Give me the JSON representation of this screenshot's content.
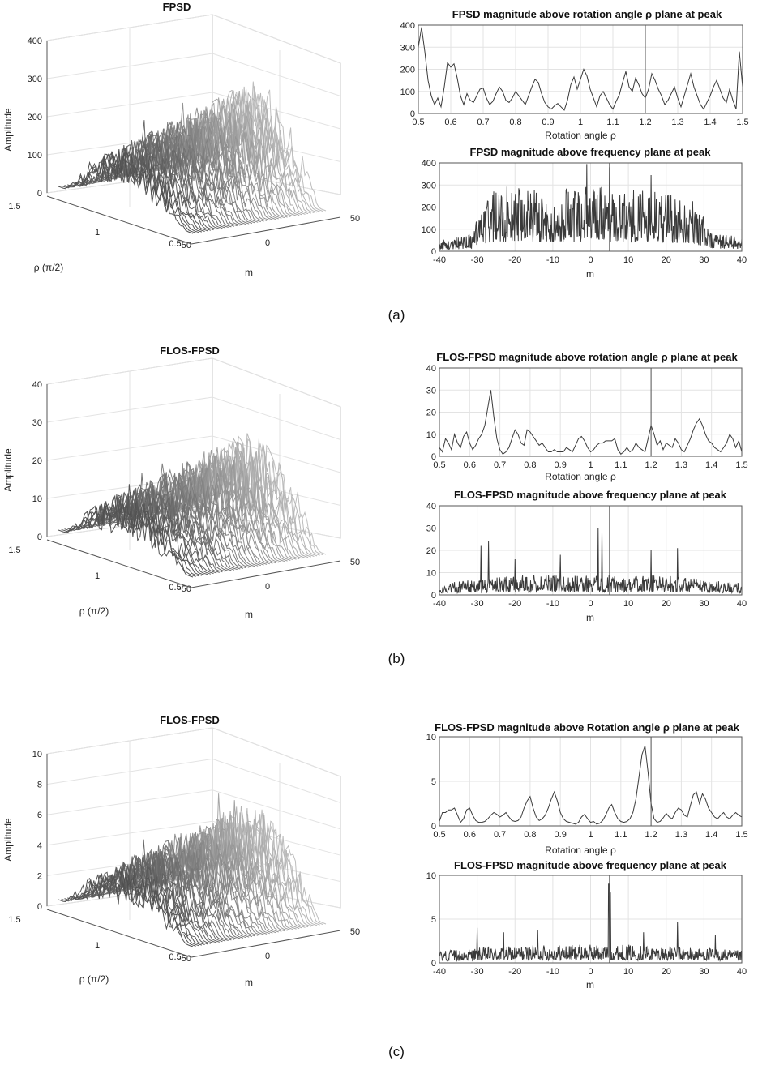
{
  "colors": {
    "trace": "#3a3a3a",
    "grid": "#e3e3e3",
    "axis": "#555555",
    "surface_high": "#d2d2d2",
    "surface_low": "#2e2e2e"
  },
  "chart_data": [
    {
      "id": "a-surface",
      "type": "area",
      "surface3d": true,
      "title": "FPSD",
      "xlabel": "m",
      "ylabel": "ρ (π/2)",
      "zlabel": "Amplitude",
      "x_range": [
        -50,
        50
      ],
      "y_range": [
        0.5,
        1.5
      ],
      "z_range": [
        0,
        400
      ],
      "x_ticks": [
        "-50",
        "0",
        "50"
      ],
      "y_ticks": [
        "0.5",
        "1",
        "1.5"
      ],
      "z_ticks": [
        "0",
        "100",
        "200",
        "300",
        "400"
      ],
      "typical_amplitude": [
        0,
        350
      ],
      "grid": true
    },
    {
      "id": "a-rho",
      "type": "line",
      "title": "FPSD magnitude above rotation angle ρ plane at peak",
      "xlabel": "Rotation angle ρ",
      "ylabel": "",
      "xlim": [
        0.5,
        1.5
      ],
      "ylim": [
        0,
        400
      ],
      "x_ticks": [
        "0.5",
        "0.6",
        "0.7",
        "0.8",
        "0.9",
        "1",
        "1.1",
        "1.2",
        "1.3",
        "1.4",
        "1.5"
      ],
      "y_ticks": [
        "0",
        "100",
        "200",
        "300",
        "400"
      ],
      "marker_x": 1.2,
      "grid": true,
      "x": [
        0.5,
        0.51,
        0.52,
        0.53,
        0.54,
        0.55,
        0.56,
        0.57,
        0.58,
        0.59,
        0.6,
        0.61,
        0.62,
        0.63,
        0.64,
        0.65,
        0.66,
        0.67,
        0.68,
        0.69,
        0.7,
        0.71,
        0.72,
        0.73,
        0.74,
        0.75,
        0.76,
        0.77,
        0.78,
        0.79,
        0.8,
        0.81,
        0.82,
        0.83,
        0.84,
        0.85,
        0.86,
        0.87,
        0.88,
        0.89,
        0.9,
        0.91,
        0.92,
        0.93,
        0.94,
        0.95,
        0.96,
        0.97,
        0.98,
        0.99,
        1.0,
        1.01,
        1.02,
        1.03,
        1.04,
        1.05,
        1.06,
        1.07,
        1.08,
        1.09,
        1.1,
        1.11,
        1.12,
        1.13,
        1.14,
        1.15,
        1.16,
        1.17,
        1.18,
        1.19,
        1.2,
        1.21,
        1.22,
        1.23,
        1.24,
        1.25,
        1.26,
        1.27,
        1.28,
        1.29,
        1.3,
        1.31,
        1.32,
        1.33,
        1.34,
        1.35,
        1.36,
        1.37,
        1.38,
        1.39,
        1.4,
        1.41,
        1.42,
        1.43,
        1.44,
        1.45,
        1.46,
        1.47,
        1.48,
        1.49,
        1.5
      ],
      "y": [
        300,
        390,
        280,
        150,
        80,
        40,
        70,
        30,
        120,
        230,
        210,
        225,
        160,
        80,
        40,
        90,
        60,
        50,
        80,
        110,
        115,
        70,
        40,
        55,
        90,
        120,
        100,
        60,
        50,
        70,
        100,
        80,
        60,
        40,
        80,
        120,
        155,
        140,
        90,
        50,
        30,
        20,
        35,
        45,
        30,
        15,
        60,
        130,
        165,
        110,
        155,
        200,
        170,
        110,
        70,
        30,
        80,
        100,
        70,
        40,
        20,
        55,
        85,
        140,
        190,
        120,
        100,
        160,
        130,
        90,
        70,
        110,
        180,
        150,
        110,
        80,
        40,
        60,
        90,
        120,
        70,
        30,
        80,
        130,
        180,
        120,
        80,
        40,
        20,
        50,
        80,
        120,
        150,
        110,
        70,
        50,
        110,
        60,
        20,
        280,
        120
      ],
      "series": [
        {
          "name": ""
        }
      ]
    },
    {
      "id": "a-m",
      "type": "line",
      "title": "FPSD magnitude above frequency plane at peak",
      "xlabel": "m",
      "ylabel": "",
      "xlim": [
        -40,
        40
      ],
      "ylim": [
        0,
        400
      ],
      "x_ticks": [
        "-40",
        "-30",
        "-20",
        "-10",
        "0",
        "10",
        "20",
        "30",
        "40"
      ],
      "y_ticks": [
        "0",
        "100",
        "200",
        "300",
        "400"
      ],
      "marker_x": 5,
      "grid": true,
      "profile_m": [
        -40,
        -32,
        -28,
        -25,
        -10,
        0,
        10,
        20,
        27,
        32,
        40
      ],
      "profile_amp": [
        30,
        45,
        120,
        170,
        160,
        175,
        160,
        155,
        140,
        55,
        35
      ],
      "peaks_m": [
        -1,
        5,
        16,
        -25,
        -19
      ],
      "peaks_amp": [
        395,
        380,
        345,
        265,
        285
      ],
      "series": [
        {
          "name": ""
        }
      ]
    },
    {
      "id": "b-surface",
      "type": "area",
      "surface3d": true,
      "title": "FLOS-FPSD",
      "xlabel": "m",
      "ylabel": "ρ (π/2)",
      "zlabel": "Amplitude",
      "x_range": [
        -50,
        50
      ],
      "y_range": [
        0.5,
        1.5
      ],
      "z_range": [
        0,
        40
      ],
      "x_ticks": [
        "-50",
        "0",
        "50"
      ],
      "y_ticks": [
        "0.5",
        "1",
        "1.5"
      ],
      "z_ticks": [
        "0",
        "10",
        "20",
        "30",
        "40"
      ],
      "typical_amplitude": [
        0,
        32
      ],
      "grid": true
    },
    {
      "id": "b-rho",
      "type": "line",
      "title": "FLOS-FPSD magnitude above rotation angle ρ plane at peak",
      "xlabel": "Rotation angle ρ",
      "ylabel": "",
      "xlim": [
        0.5,
        1.5
      ],
      "ylim": [
        0,
        40
      ],
      "x_ticks": [
        "0.5",
        "0.6",
        "0.7",
        "0.8",
        "0.9",
        "1",
        "1.1",
        "1.2",
        "1.3",
        "1.4",
        "1.5"
      ],
      "y_ticks": [
        "0",
        "10",
        "20",
        "30",
        "40"
      ],
      "marker_x": 1.2,
      "grid": true,
      "x": [
        0.5,
        0.51,
        0.52,
        0.53,
        0.54,
        0.55,
        0.56,
        0.57,
        0.58,
        0.59,
        0.6,
        0.61,
        0.62,
        0.63,
        0.64,
        0.65,
        0.66,
        0.67,
        0.68,
        0.69,
        0.7,
        0.71,
        0.72,
        0.73,
        0.74,
        0.75,
        0.76,
        0.77,
        0.78,
        0.79,
        0.8,
        0.81,
        0.82,
        0.83,
        0.84,
        0.85,
        0.86,
        0.87,
        0.88,
        0.89,
        0.9,
        0.91,
        0.92,
        0.93,
        0.94,
        0.95,
        0.96,
        0.97,
        0.98,
        0.99,
        1.0,
        1.01,
        1.02,
        1.03,
        1.04,
        1.05,
        1.06,
        1.07,
        1.08,
        1.09,
        1.1,
        1.11,
        1.12,
        1.13,
        1.14,
        1.15,
        1.16,
        1.17,
        1.18,
        1.19,
        1.2,
        1.21,
        1.22,
        1.23,
        1.24,
        1.25,
        1.26,
        1.27,
        1.28,
        1.29,
        1.3,
        1.31,
        1.32,
        1.33,
        1.34,
        1.35,
        1.36,
        1.37,
        1.38,
        1.39,
        1.4,
        1.41,
        1.42,
        1.43,
        1.44,
        1.45,
        1.46,
        1.47,
        1.48,
        1.49,
        1.5
      ],
      "y": [
        4,
        2,
        8,
        6,
        3,
        10,
        6,
        4,
        9,
        11,
        6,
        3,
        5,
        8,
        10,
        14,
        22,
        30,
        18,
        8,
        3,
        1,
        2,
        4,
        8,
        12,
        10,
        6,
        5,
        12,
        11,
        9,
        7,
        5,
        6,
        4,
        2,
        2,
        3,
        2,
        2,
        2,
        4,
        3,
        2,
        5,
        8,
        9,
        7,
        4,
        2,
        3,
        5,
        6,
        6,
        7,
        7,
        7,
        8,
        3,
        1,
        2,
        4,
        2,
        3,
        6,
        4,
        3,
        2,
        8,
        14,
        10,
        5,
        7,
        3,
        6,
        5,
        4,
        8,
        6,
        3,
        2,
        5,
        8,
        12,
        15,
        17,
        14,
        10,
        7,
        6,
        4,
        3,
        2,
        4,
        6,
        10,
        8,
        4,
        7,
        2
      ],
      "series": [
        {
          "name": ""
        }
      ]
    },
    {
      "id": "b-m",
      "type": "line",
      "title": "FLOS-FPSD magnitude above frequency plane at peak",
      "xlabel": "m",
      "ylabel": "",
      "xlim": [
        -40,
        40
      ],
      "ylim": [
        0,
        40
      ],
      "x_ticks": [
        "-40",
        "-30",
        "-20",
        "-10",
        "0",
        "10",
        "20",
        "30",
        "40"
      ],
      "y_ticks": [
        "0",
        "10",
        "20",
        "30",
        "40"
      ],
      "marker_x": 5,
      "grid": true,
      "profile_m": [
        -40,
        -30,
        -20,
        -10,
        0,
        10,
        20,
        30,
        40
      ],
      "profile_amp": [
        3,
        4,
        5,
        5,
        5,
        5,
        5,
        4,
        3
      ],
      "peaks_m": [
        2,
        3,
        -27,
        23,
        -29,
        16,
        -8,
        -20
      ],
      "peaks_amp": [
        30,
        28,
        24,
        21,
        22,
        20,
        18,
        16
      ],
      "series": [
        {
          "name": ""
        }
      ]
    },
    {
      "id": "c-surface",
      "type": "area",
      "surface3d": true,
      "title": "FLOS-FPSD",
      "xlabel": "m",
      "ylabel": "ρ (π/2)",
      "zlabel": "Amplitude",
      "x_range": [
        -50,
        50
      ],
      "y_range": [
        0.5,
        1.5
      ],
      "z_range": [
        0,
        10
      ],
      "x_ticks": [
        "-50",
        "0",
        "50"
      ],
      "y_ticks": [
        "0.5",
        "1",
        "1.5"
      ],
      "z_ticks": [
        "0",
        "2",
        "4",
        "6",
        "8",
        "10"
      ],
      "typical_amplitude": [
        0,
        8
      ],
      "grid": true
    },
    {
      "id": "c-rho",
      "type": "line",
      "title": "FLOS-FPSD magnitude above Rotation angle ρ plane at peak",
      "xlabel": "Rotation angle ρ",
      "ylabel": "",
      "xlim": [
        0.5,
        1.5
      ],
      "ylim": [
        0,
        10
      ],
      "x_ticks": [
        "0.5",
        "0.6",
        "0.7",
        "0.8",
        "0.9",
        "1",
        "1.1",
        "1.2",
        "1.3",
        "1.4",
        "1.5"
      ],
      "y_ticks": [
        "0",
        "5",
        "10"
      ],
      "marker_x": 1.2,
      "grid": true,
      "x": [
        0.5,
        0.51,
        0.52,
        0.53,
        0.54,
        0.55,
        0.56,
        0.57,
        0.58,
        0.59,
        0.6,
        0.61,
        0.62,
        0.63,
        0.64,
        0.65,
        0.66,
        0.67,
        0.68,
        0.69,
        0.7,
        0.71,
        0.72,
        0.73,
        0.74,
        0.75,
        0.76,
        0.77,
        0.78,
        0.79,
        0.8,
        0.81,
        0.82,
        0.83,
        0.84,
        0.85,
        0.86,
        0.87,
        0.88,
        0.89,
        0.9,
        0.91,
        0.92,
        0.93,
        0.94,
        0.95,
        0.96,
        0.97,
        0.98,
        0.99,
        1.0,
        1.01,
        1.02,
        1.03,
        1.04,
        1.05,
        1.06,
        1.07,
        1.08,
        1.09,
        1.1,
        1.11,
        1.12,
        1.13,
        1.14,
        1.15,
        1.16,
        1.17,
        1.18,
        1.19,
        1.2,
        1.21,
        1.22,
        1.23,
        1.24,
        1.25,
        1.26,
        1.27,
        1.28,
        1.29,
        1.3,
        1.31,
        1.32,
        1.33,
        1.34,
        1.35,
        1.36,
        1.37,
        1.38,
        1.39,
        1.4,
        1.41,
        1.42,
        1.43,
        1.44,
        1.45,
        1.46,
        1.47,
        1.48,
        1.49,
        1.5
      ],
      "y": [
        0.5,
        1.5,
        1.5,
        1.8,
        1.8,
        2.0,
        1.2,
        0.4,
        0.8,
        1.8,
        2.0,
        1.2,
        0.6,
        0.4,
        0.4,
        0.5,
        0.8,
        1.2,
        1.5,
        1.3,
        1.0,
        1.2,
        1.5,
        1.0,
        0.6,
        0.5,
        0.6,
        1.0,
        2.0,
        2.8,
        3.3,
        2.0,
        1.0,
        0.6,
        0.8,
        1.2,
        2.0,
        3.0,
        3.8,
        2.8,
        1.5,
        0.8,
        0.5,
        0.4,
        0.3,
        0.2,
        0.4,
        1.0,
        1.3,
        0.8,
        0.4,
        0.5,
        0.2,
        0.3,
        0.6,
        1.2,
        2.0,
        2.4,
        1.5,
        0.8,
        0.5,
        0.4,
        0.5,
        0.8,
        1.5,
        3.0,
        5.5,
        8.0,
        9.0,
        6.0,
        2.5,
        0.8,
        0.4,
        0.5,
        0.9,
        1.4,
        1.0,
        0.8,
        1.5,
        2.0,
        1.8,
        1.2,
        1.0,
        2.3,
        3.5,
        3.8,
        2.5,
        3.6,
        3.0,
        2.0,
        1.5,
        1.0,
        0.8,
        1.2,
        1.5,
        1.0,
        0.8,
        1.2,
        1.5,
        1.2,
        1.0
      ],
      "series": [
        {
          "name": ""
        }
      ]
    },
    {
      "id": "c-m",
      "type": "line",
      "title": "FLOS-FPSD magnitude above frequency plane at peak",
      "xlabel": "m",
      "ylabel": "",
      "xlim": [
        -40,
        40
      ],
      "ylim": [
        0,
        10
      ],
      "x_ticks": [
        "-40",
        "-30",
        "-20",
        "-10",
        "0",
        "10",
        "20",
        "30",
        "40"
      ],
      "y_ticks": [
        "0",
        "5",
        "10"
      ],
      "marker_x": 5,
      "grid": true,
      "profile_m": [
        -40,
        -30,
        -20,
        -10,
        0,
        10,
        20,
        30,
        40
      ],
      "profile_amp": [
        0.8,
        1.0,
        1.1,
        1.2,
        1.2,
        1.2,
        1.1,
        1.0,
        0.8
      ],
      "peaks_m": [
        4.8,
        5.2,
        23,
        -30,
        -14,
        -23,
        14,
        33
      ],
      "peaks_amp": [
        9.0,
        8.0,
        4.7,
        4.0,
        3.8,
        3.5,
        3.5,
        3.2
      ],
      "series": [
        {
          "name": ""
        }
      ]
    }
  ],
  "captions": [
    "(a)",
    "(b)",
    "(c)"
  ]
}
